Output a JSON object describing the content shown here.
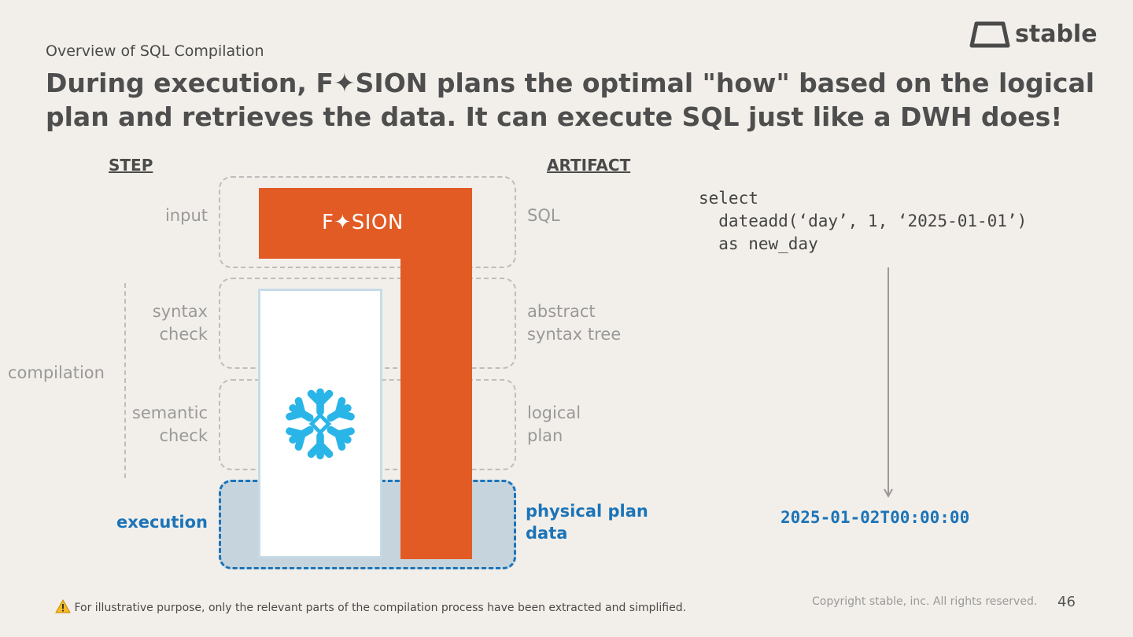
{
  "header": {
    "subtitle": "Overview of SQL Compilation",
    "title": "During execution, F✦SION plans the optimal \"how\" based on the logical plan and retrieves the data. It can execute SQL just like a DWH does!"
  },
  "logo": {
    "word": "stable"
  },
  "columns": {
    "step": "STEP",
    "artifact": "ARTIFACT"
  },
  "group_label": "compilation",
  "steps": [
    {
      "step": "input",
      "artifact": "SQL"
    },
    {
      "step": "syntax\ncheck",
      "artifact": "abstract\nsyntax tree"
    },
    {
      "step": "semantic\ncheck",
      "artifact": "logical\nplan"
    },
    {
      "step": "execution",
      "artifact": "physical plan\ndata"
    }
  ],
  "fusion_label": "F✦SION",
  "icons": {
    "snowflake": "snowflake-icon",
    "logo": "stable-logo-icon",
    "warning": "warning-icon"
  },
  "code": {
    "sql": "select\n  dateadd(‘day’, 1, ‘2025-01-01’)\n  as new_day",
    "result": "2025-01-02T00:00:00"
  },
  "footer": {
    "note": "For illustrative purpose, only the relevant parts of the compilation process have been extracted and simplified.",
    "copyright": "Copyright stable, inc. All rights reserved.",
    "page": "46"
  },
  "colors": {
    "background": "#f2efea",
    "fusion_orange": "#e35b24",
    "snowflake_blue": "#29b5e8",
    "execution_blue": "#1c74b8",
    "execution_fill": "#c5d4dd"
  }
}
